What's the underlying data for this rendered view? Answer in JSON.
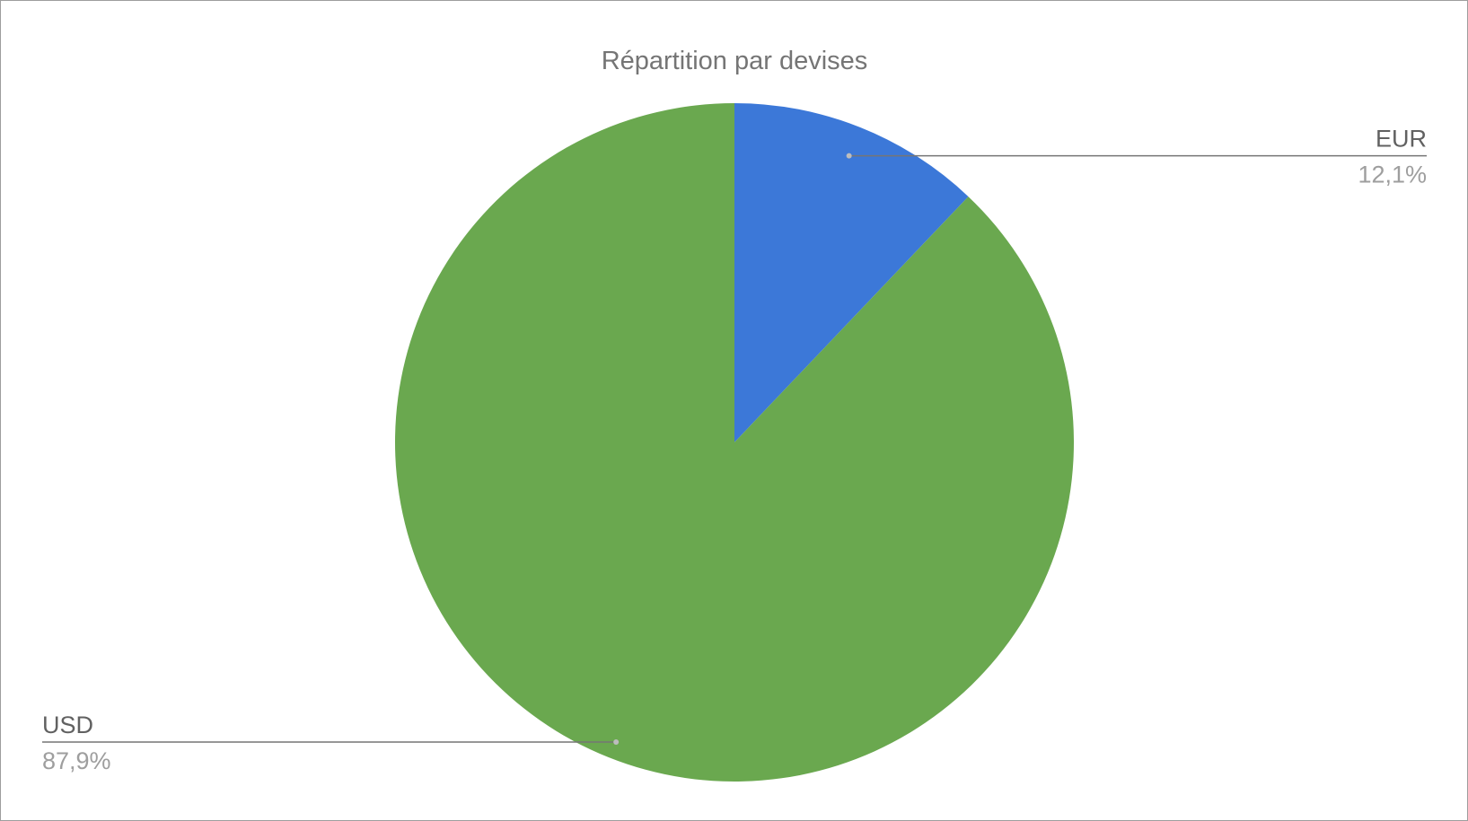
{
  "chart_data": {
    "type": "pie",
    "title": "Répartition par devises",
    "slices": [
      {
        "label": "EUR",
        "value": 12.1,
        "value_label": "12,1%",
        "color": "#3c78d8"
      },
      {
        "label": "USD",
        "value": 87.9,
        "value_label": "87,9%",
        "color": "#6aa84f"
      }
    ],
    "start_angle": "12 o'clock",
    "direction": "clockwise",
    "legend": "none"
  },
  "colors": {
    "leader_line": "#757575",
    "label_text": "#616161",
    "percent_text": "#9e9e9e"
  }
}
